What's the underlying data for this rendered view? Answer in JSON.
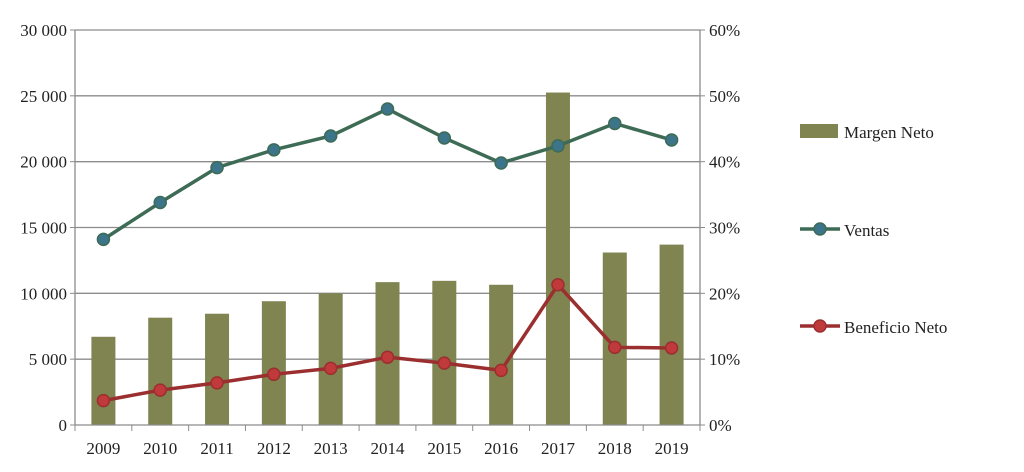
{
  "chart_data": {
    "type": "bar+line",
    "categories": [
      "2009",
      "2010",
      "2011",
      "2012",
      "2013",
      "2014",
      "2015",
      "2016",
      "2017",
      "2018",
      "2019"
    ],
    "series": [
      {
        "name": "Margen Neto",
        "type": "bar",
        "axis": "right",
        "color": "#7f8450",
        "values": [
          13.4,
          16.3,
          16.9,
          18.8,
          20.0,
          21.7,
          21.9,
          21.3,
          50.5,
          26.2,
          27.4
        ]
      },
      {
        "name": "Ventas",
        "type": "line",
        "axis": "left",
        "color": "#3d6b55",
        "marker_color": "#3c7489",
        "values": [
          14100,
          16900,
          19550,
          20900,
          21950,
          24000,
          21800,
          19900,
          21200,
          22900,
          21650
        ]
      },
      {
        "name": "Beneficio Neto",
        "type": "line",
        "axis": "left",
        "color": "#9b2f2f",
        "marker_color": "#c0393b",
        "values": [
          1850,
          2650,
          3200,
          3850,
          4300,
          5150,
          4700,
          4150,
          10650,
          5900,
          5850
        ]
      }
    ],
    "left_axis": {
      "ylim": [
        0,
        30000
      ],
      "ticks": [
        "0",
        "5 000",
        "10 000",
        "15 000",
        "20 000",
        "25 000",
        "30 000"
      ]
    },
    "right_axis": {
      "ylim": [
        0,
        60
      ],
      "ticks": [
        "0%",
        "10%",
        "20%",
        "30%",
        "40%",
        "50%",
        "60%"
      ]
    },
    "grid": true,
    "legend": "right",
    "title": "",
    "xlabel": "",
    "ylabel": ""
  }
}
